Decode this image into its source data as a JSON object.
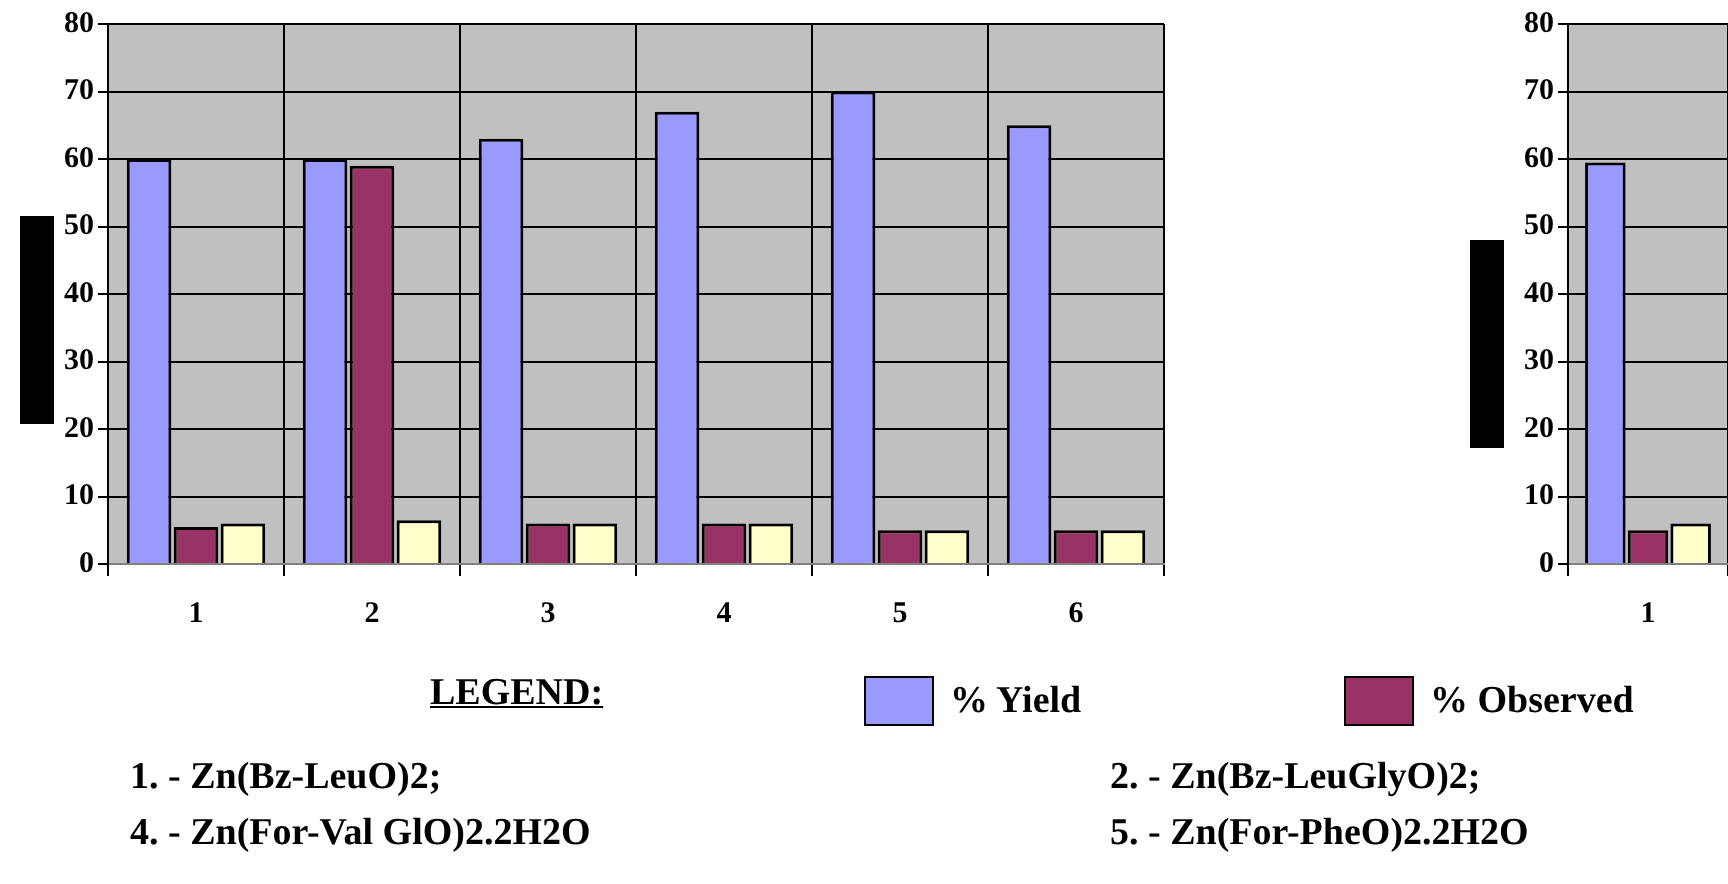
{
  "chart_data": [
    {
      "type": "bar",
      "categories": [
        "1",
        "2",
        "3",
        "4",
        "5",
        "6"
      ],
      "series": [
        {
          "name": "% Yield",
          "color": "#9999ff",
          "values": [
            60,
            60,
            63,
            67,
            70,
            65
          ]
        },
        {
          "name": "% Observed",
          "color": "#993366",
          "values": [
            5.5,
            59,
            6,
            6,
            5,
            5
          ]
        },
        {
          "color": "#ffffcc",
          "values": [
            6,
            6.5,
            6,
            6,
            5,
            5
          ]
        }
      ],
      "ylim": [
        0,
        80
      ],
      "yticks": [
        0,
        10,
        20,
        30,
        40,
        50,
        60,
        70,
        80
      ],
      "grid": true,
      "legend": "bottom",
      "legend_title": "LEGEND:",
      "annotations": [
        "1. - Zn(Bz-LeuO)2;",
        "2. - Zn(Bz-LeuGlyO)2;",
        "4. - Zn(For-Val GlO)2.2H2O",
        "5. - Zn(For-PheO)2.2H2O"
      ]
    },
    {
      "type": "bar",
      "categories": [
        "1"
      ],
      "series": [
        {
          "color": "#9999ff",
          "values": [
            59.5
          ]
        },
        {
          "color": "#993366",
          "values": [
            5
          ]
        },
        {
          "color": "#ffffcc",
          "values": [
            6
          ]
        }
      ],
      "ylim": [
        0,
        80
      ],
      "yticks": [
        0,
        10,
        20,
        30,
        40,
        50,
        60,
        70,
        80
      ],
      "grid": true
    }
  ]
}
